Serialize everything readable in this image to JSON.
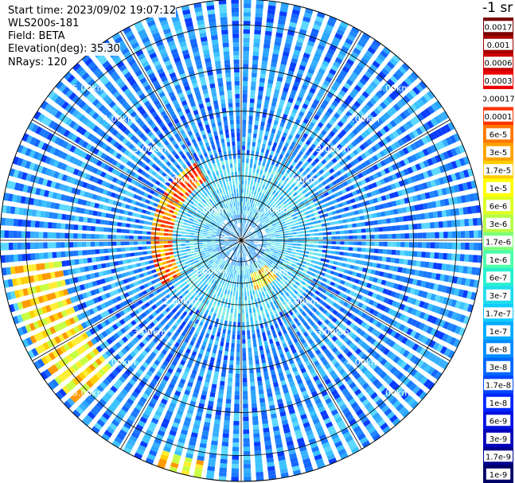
{
  "info": {
    "start_time": "Start time: 2023/09/02 19:07:12",
    "device": "WLS200s-181",
    "field": "Field: BETA",
    "elevation": "Elevation(deg): 35.30",
    "nrays": "NRays: 120"
  },
  "colorbar": {
    "title": "-1 sr",
    "labels": [
      "0.0017",
      "0.001",
      "0.0006",
      "0.0003",
      "0.00017",
      "0.0001",
      "6e-5",
      "3e-5",
      "1.7e-5",
      "1e-5",
      "6e-6",
      "3e-6",
      "1.7e-6",
      "1e-6",
      "6e-7",
      "3e-7",
      "1.7e-7",
      "1e-7",
      "6e-8",
      "3e-8",
      "1.7e-8",
      "1e-8",
      "6e-9",
      "3e-9",
      "1.7e-9",
      "1e-9"
    ],
    "colors": [
      "#7a0000",
      "#a50000",
      "#cc0000",
      "#ee0000",
      "#ffffff",
      "#ff3300",
      "#ff7700",
      "#ffa200",
      "#ffcc00",
      "#ffff00",
      "#ddff22",
      "#b8ff47",
      "#7dff7a",
      "#4dffaa",
      "#28f0d0",
      "#22ddee",
      "#11ccff",
      "#00aaff",
      "#008cff",
      "#0066ff",
      "#0047ff",
      "#0026ff",
      "#0010e0",
      "#0000bb",
      "#000090",
      "#000066"
    ]
  },
  "chart_data": {
    "type": "heatmap",
    "projection": "polar PPI scan",
    "field": "BETA",
    "elevation_deg": 35.3,
    "n_rays": 120,
    "ring_labels": [
      "1.00km",
      "2.00km",
      "3.00km",
      "4.00km",
      "5.00km"
    ],
    "ring_label_prefix": "",
    "max_range_km": 5.6,
    "spokes_deg": [
      0,
      30,
      60,
      90,
      120,
      150,
      180,
      210,
      240,
      270,
      300,
      330
    ],
    "background_value": "1e-8 to 6e-8 (blue)",
    "features": [
      {
        "name": "arc-upper-left",
        "range_km": [
          1.6,
          2.1
        ],
        "azimuth_deg": [
          240,
          330
        ],
        "value": "1e-4 to 3e-4"
      },
      {
        "name": "patch-lower-center",
        "range_km": [
          0.8,
          1.2
        ],
        "azimuth_deg": [
          135,
          165
        ],
        "value": "6e-5 to 1e-4"
      },
      {
        "name": "far-arc-lower-left",
        "range_km": [
          4.2,
          5.4
        ],
        "azimuth_deg": [
          225,
          265
        ],
        "value": "3e-5 to 1e-4"
      },
      {
        "name": "far-patch-bottom",
        "range_km": [
          5.2,
          5.6
        ],
        "azimuth_deg": [
          190,
          200
        ],
        "value": "3e-5 to 6e-5"
      }
    ]
  }
}
